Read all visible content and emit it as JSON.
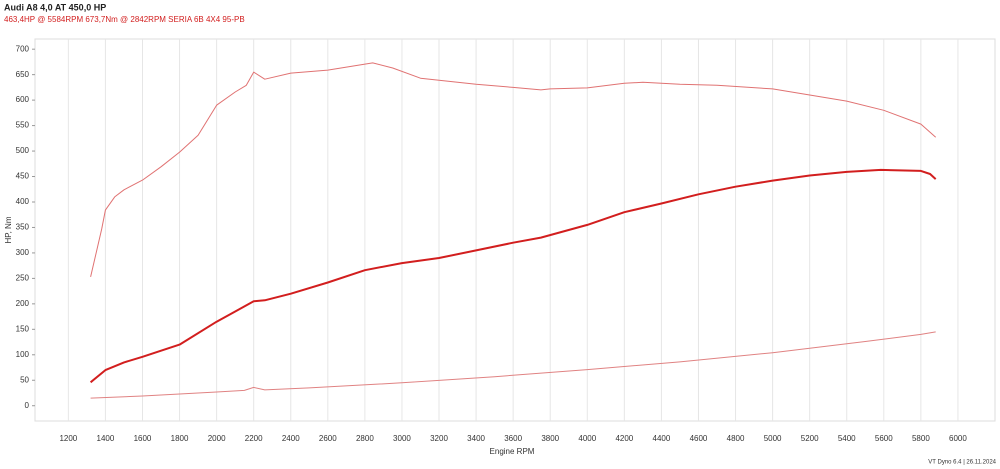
{
  "chart_data": {
    "type": "line",
    "title": "Audi A8 4,0 AT 450,0 HP",
    "subtitle": "463,4HP @ 5584RPM 673,7Nm @ 2842RPM  SERIA 6B 4X4  95-PB",
    "x_label": "Engine RPM",
    "y_label": "HP, Nm",
    "footer": "VT Dyno 6.4 | 26.11.2024",
    "xlim": [
      1020,
      6200
    ],
    "ylim": [
      -30,
      720
    ],
    "xticks": [
      1200,
      1400,
      1600,
      1800,
      2000,
      2200,
      2400,
      2600,
      2800,
      3000,
      3200,
      3400,
      3600,
      3800,
      4000,
      4200,
      4400,
      4600,
      4800,
      5000,
      5200,
      5400,
      5600,
      5800,
      6000
    ],
    "yticks": [
      0,
      50,
      100,
      150,
      200,
      250,
      300,
      350,
      400,
      450,
      500,
      550,
      600,
      650,
      700
    ],
    "grid": true,
    "series": [
      {
        "color": "#e07272",
        "x": [
          1320,
          1380,
          1400,
          1450,
          1500,
          1600,
          1700,
          1800,
          1900,
          2000,
          2100,
          2160,
          2200,
          2260,
          2400,
          2600,
          2842,
          2950,
          3100,
          3200,
          3400,
          3600,
          3750,
          3800,
          4000,
          4200,
          4300,
          4500,
          4700,
          5000,
          5200,
          5400,
          5600,
          5800,
          5880
        ],
        "values": [
          253,
          347,
          384,
          410,
          424,
          443,
          469,
          498,
          531,
          590,
          616,
          629,
          655,
          641,
          653,
          659,
          673,
          663,
          643,
          639,
          631,
          625,
          620,
          622,
          624,
          633,
          635,
          631,
          629,
          622,
          610,
          598,
          580,
          553,
          527
        ]
      },
      {
        "color": "#d21e1e",
        "x": [
          1320,
          1400,
          1500,
          1600,
          1800,
          2000,
          2100,
          2200,
          2260,
          2400,
          2600,
          2800,
          3000,
          3200,
          3400,
          3600,
          3750,
          4000,
          4200,
          4400,
          4600,
          4800,
          5000,
          5200,
          5400,
          5584,
          5800,
          5850,
          5880
        ],
        "values": [
          46,
          70,
          85,
          96,
          120,
          165,
          185,
          205,
          207,
          220,
          242,
          266,
          280,
          290,
          305,
          320,
          330,
          355,
          380,
          397,
          415,
          430,
          442,
          452,
          459,
          463,
          461,
          455,
          445
        ]
      },
      {
        "color": "#e08282",
        "x": [
          1320,
          1600,
          2000,
          2150,
          2200,
          2260,
          2500,
          3000,
          3500,
          4000,
          4500,
          5000,
          5500,
          5800,
          5880
        ],
        "values": [
          15,
          19,
          27,
          30,
          36,
          31,
          35,
          45,
          57,
          71,
          86,
          104,
          126,
          140,
          145
        ]
      }
    ]
  }
}
